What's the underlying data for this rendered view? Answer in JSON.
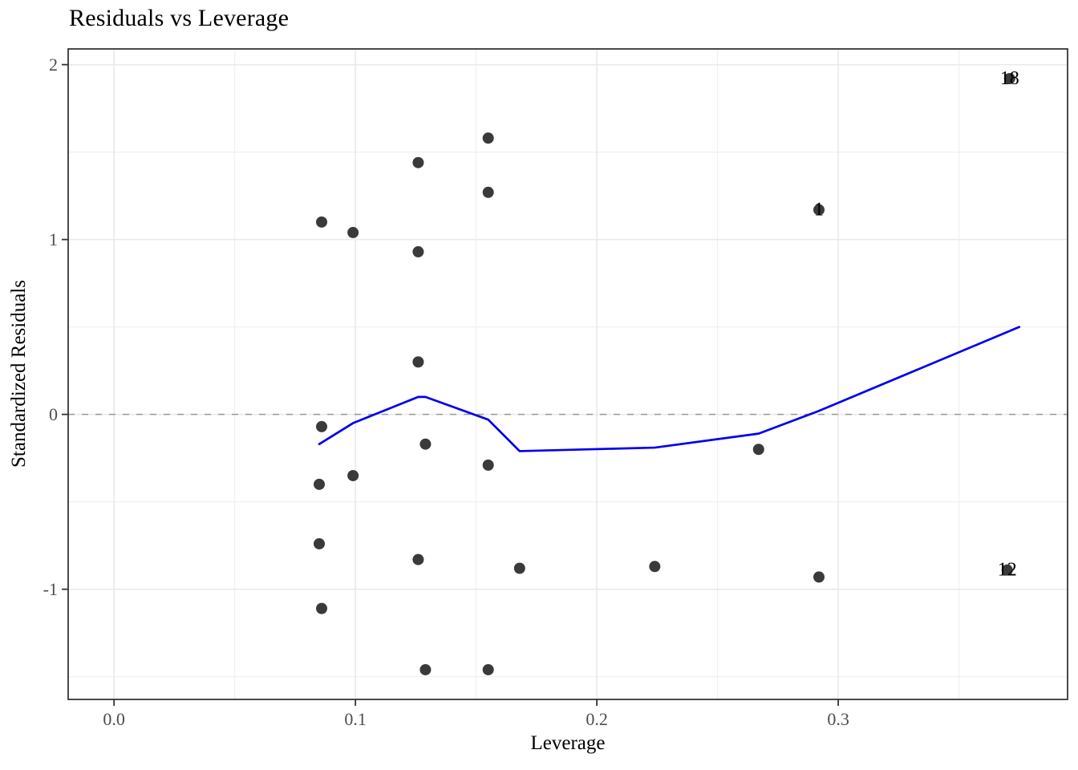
{
  "title": "Residuals vs Leverage",
  "axes": {
    "x_label": "Leverage",
    "y_label": "Standardized Residuals"
  },
  "chart_data": {
    "type": "scatter",
    "title": "Residuals vs Leverage",
    "xlabel": "Leverage",
    "ylabel": "Standardized Residuals",
    "xlim": [
      -0.019,
      0.395
    ],
    "ylim": [
      -1.63,
      2.09
    ],
    "grid": true,
    "legend_position": "none",
    "x_ticks": {
      "values": [
        0.0,
        0.1,
        0.2,
        0.3
      ],
      "labels": [
        "0.0",
        "0.1",
        "0.2",
        "0.3"
      ],
      "minor": [
        0.05,
        0.15,
        0.25,
        0.35
      ]
    },
    "y_ticks": {
      "values": [
        -1,
        0,
        1,
        2
      ],
      "labels": [
        "-1",
        "0",
        "1",
        "2"
      ],
      "minor": [
        -1.5,
        -0.5,
        0.5,
        1.5
      ]
    },
    "reference_line": {
      "y": 0,
      "style": "dashed",
      "color": "#999999"
    },
    "points": [
      [
        0.086,
        1.1
      ],
      [
        0.099,
        1.04
      ],
      [
        0.126,
        1.44
      ],
      [
        0.155,
        1.58
      ],
      [
        0.155,
        1.27
      ],
      [
        0.126,
        0.93
      ],
      [
        0.126,
        0.3
      ],
      [
        0.086,
        -0.07
      ],
      [
        0.129,
        -0.17
      ],
      [
        0.155,
        -0.29
      ],
      [
        0.099,
        -0.35
      ],
      [
        0.085,
        -0.4
      ],
      [
        0.267,
        -0.2
      ],
      [
        0.085,
        -0.74
      ],
      [
        0.126,
        -0.83
      ],
      [
        0.168,
        -0.88
      ],
      [
        0.224,
        -0.87
      ],
      [
        0.292,
        -0.93
      ],
      [
        0.086,
        -1.11
      ],
      [
        0.129,
        -1.46
      ],
      [
        0.155,
        -1.46
      ]
    ],
    "labeled_points": [
      {
        "x": 0.371,
        "y": 1.92,
        "label": "18"
      },
      {
        "x": 0.292,
        "y": 1.17,
        "label": "1"
      },
      {
        "x": 0.37,
        "y": -0.89,
        "label": "12"
      }
    ],
    "smooth": {
      "type": "loess",
      "color": "#0000EE",
      "path": [
        [
          0.085,
          -0.17
        ],
        [
          0.099,
          -0.05
        ],
        [
          0.126,
          0.1
        ],
        [
          0.129,
          0.1
        ],
        [
          0.155,
          -0.03
        ],
        [
          0.168,
          -0.21
        ],
        [
          0.224,
          -0.19
        ],
        [
          0.267,
          -0.11
        ],
        [
          0.292,
          0.02
        ],
        [
          0.375,
          0.5
        ]
      ]
    },
    "colors": {
      "point": "#3A3A3A",
      "smooth_line": "#0000EE",
      "reference_line": "#999999",
      "grid_major": "#E9E9E9",
      "grid_minor": "#F0F0F0",
      "panel_border": "#2B2B2B",
      "tick_mark": "#333333",
      "tick_label": "#4D4D4D",
      "point_label": "#000000",
      "background": "#FFFFFF"
    }
  }
}
